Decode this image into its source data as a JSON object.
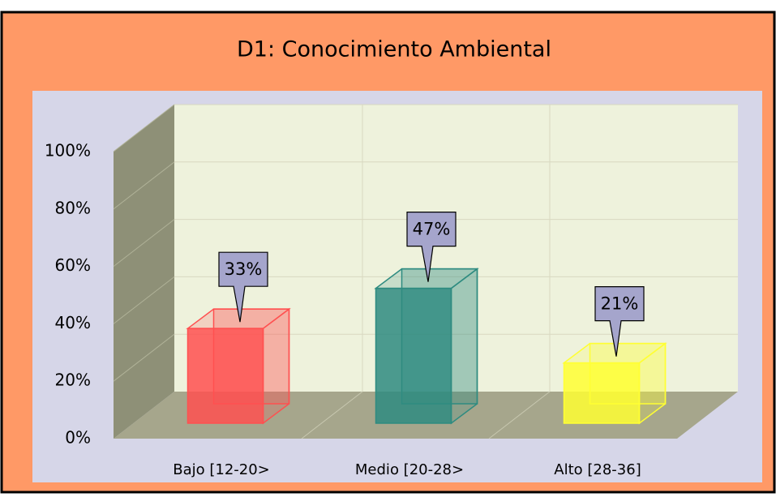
{
  "chart_data": {
    "type": "bar3d",
    "title": "D1: Conocimiento Ambiental",
    "categories": [
      "Bajo [12-20>",
      "Medio [20-28>",
      "Alto [28-36]"
    ],
    "values": [
      33,
      47,
      21
    ],
    "value_labels": [
      "33%",
      "47%",
      "21%"
    ],
    "colors": [
      "#ff5050",
      "#2e8b80",
      "#ffff33"
    ],
    "ylim": [
      0,
      100
    ],
    "yticks": [
      {
        "value": 0,
        "label": "0%"
      },
      {
        "value": 20,
        "label": "20%"
      },
      {
        "value": 40,
        "label": "40%"
      },
      {
        "value": 60,
        "label": "60%"
      },
      {
        "value": 80,
        "label": "80%"
      },
      {
        "value": 100,
        "label": "100%"
      }
    ],
    "grid": true
  }
}
